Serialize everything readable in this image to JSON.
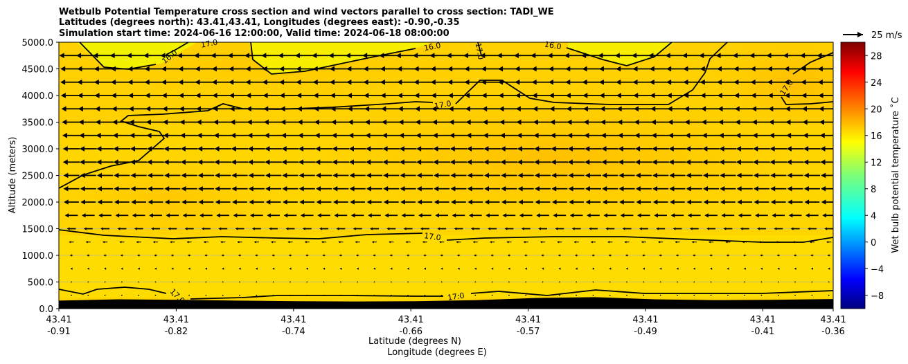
{
  "chart_data": {
    "type": "cross-section-contour",
    "title_lines": [
      "Wetbulb Potential Temperature cross section and wind vectors parallel to cross section: TADI_WE",
      "Latitudes (degrees north): 43.41,43.41, Longitudes (degrees east): -0.90,-0.35",
      "Simulation start time: 2024-06-16 12:00:00, Valid time: 2024-06-18 08:00:00"
    ],
    "ylabel": "Altitude (meters)",
    "xlabel_line1": "Latitude (degrees N)",
    "xlabel_line2": "Longitude (degrees E)",
    "ylim": [
      0,
      5000
    ],
    "y_ticks": [
      "0.0",
      "500.0",
      "1000.0",
      "1500.0",
      "2000.0",
      "2500.0",
      "3000.0",
      "3500.0",
      "4000.0",
      "4500.0",
      "5000.0"
    ],
    "x_ticks": [
      {
        "pos": 0.0,
        "lat": "43.41",
        "lon": "-0.91"
      },
      {
        "pos": 1.0,
        "lat": "43.41",
        "lon": "-0.82"
      },
      {
        "pos": 2.0,
        "lat": "43.41",
        "lon": "-0.74"
      },
      {
        "pos": 3.0,
        "lat": "43.41",
        "lon": "-0.66"
      },
      {
        "pos": 4.0,
        "lat": "43.41",
        "lon": "-0.57"
      },
      {
        "pos": 5.0,
        "lat": "43.41",
        "lon": "-0.49"
      },
      {
        "pos": 6.0,
        "lat": "43.41",
        "lon": "-0.41"
      },
      {
        "pos": 6.6,
        "lat": "43.41",
        "lon": "-0.36"
      }
    ],
    "x_range": [
      0,
      6.6
    ],
    "colorbar": {
      "label": "Wet bulb potential temperature ˚C",
      "range": [
        -10,
        30
      ],
      "ticks": [
        "−8",
        "−4",
        "0",
        "4",
        "8",
        "12",
        "16",
        "20",
        "24",
        "28"
      ],
      "tick_values": [
        -8,
        -4,
        0,
        4,
        8,
        12,
        16,
        20,
        24,
        28
      ]
    },
    "quiver_key": "25 m/s",
    "contour_labels": [
      "16.0",
      "17.0",
      "17.0",
      "16.0",
      "17.0",
      "16.0",
      "17.0",
      "17.0",
      "17.0",
      "17.0",
      "17.0"
    ],
    "wind_levels": [
      {
        "alt": 4750,
        "u": -24
      },
      {
        "alt": 4500,
        "u": -22
      },
      {
        "alt": 4250,
        "u": -22
      },
      {
        "alt": 4000,
        "u": -21
      },
      {
        "alt": 3750,
        "u": -20
      },
      {
        "alt": 3500,
        "u": -19
      },
      {
        "alt": 3250,
        "u": -18
      },
      {
        "alt": 3000,
        "u": -17
      },
      {
        "alt": 2750,
        "u": -17
      },
      {
        "alt": 2500,
        "u": -16
      },
      {
        "alt": 2250,
        "u": -16
      },
      {
        "alt": 2000,
        "u": -15
      },
      {
        "alt": 1750,
        "u": -13
      },
      {
        "alt": 1500,
        "u": -9
      },
      {
        "alt": 1250,
        "u": -5
      },
      {
        "alt": 1000,
        "u": -3
      },
      {
        "alt": 750,
        "u": -2
      },
      {
        "alt": 500,
        "u": -1
      },
      {
        "alt": 250,
        "u": -1
      }
    ],
    "terrain_altitude": [
      150,
      175,
      165,
      150,
      140,
      135,
      140,
      160,
      200,
      215,
      175,
      160,
      165,
      180
    ]
  }
}
